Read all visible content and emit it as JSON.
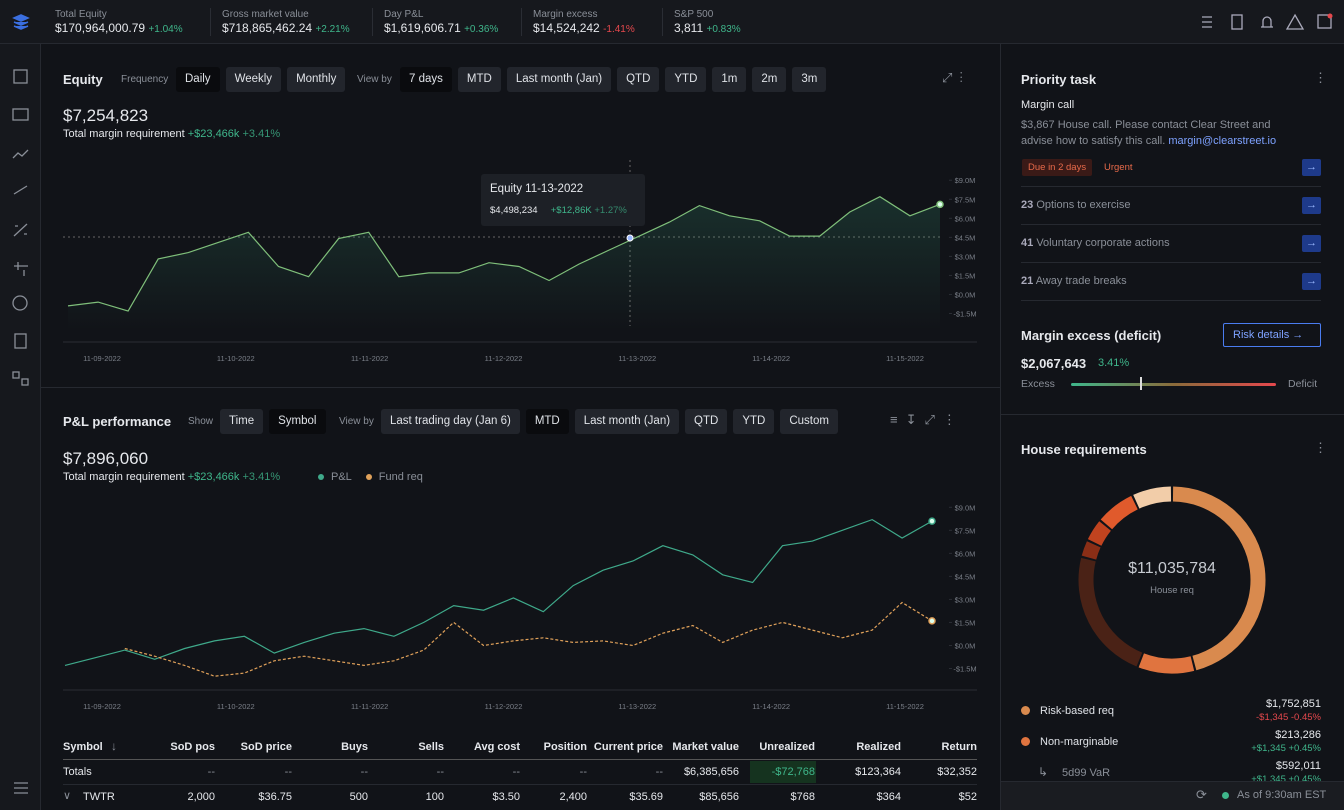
{
  "topbar": {
    "metrics": [
      {
        "label": "Total Equity",
        "value": "$170,964,000.79",
        "change": "+1.04%"
      },
      {
        "label": "Gross market value",
        "value": "$718,865,462.24",
        "change": "+2.21%"
      },
      {
        "label": "Day P&L",
        "value": "$1,619,606.71",
        "change": "+0.36%"
      },
      {
        "label": "Margin excess",
        "value": "$14,524,242",
        "change": "-1.41%"
      },
      {
        "label": "S&P 500",
        "value": "3,811",
        "change": "+0.83%"
      }
    ]
  },
  "equity": {
    "title": "Equity",
    "frequency": {
      "label": "Frequency",
      "options": [
        "Daily",
        "Weekly",
        "Monthly"
      ],
      "selected": 0
    },
    "view_by": {
      "label": "View by",
      "options": [
        "7 days",
        "MTD",
        "Last month (Jan)",
        "QTD",
        "YTD",
        "1m",
        "2m",
        "3m"
      ],
      "selected": 0
    },
    "value": "$7,254,823",
    "sub_label": "Total margin requirement",
    "sub_change": "+$23,466k",
    "sub_pct": "+3.41%",
    "tooltip": {
      "title": "Equity 11-13-2022",
      "value": "$4,498,234",
      "change": "+$12,86K",
      "pct": "+1.27%"
    },
    "chart": {
      "type": "line",
      "ylim": [
        -2.8,
        10.2
      ],
      "yticks": [
        {
          "value": 9,
          "label": "$9.0M"
        },
        {
          "value": 7.5,
          "label": "$7.5M"
        },
        {
          "value": 6,
          "label": "$6.0M"
        },
        {
          "value": 4.5,
          "label": "$4.5M"
        },
        {
          "value": 3,
          "label": "$3.0M"
        },
        {
          "value": 1.5,
          "label": "$1.5M"
        },
        {
          "value": 0,
          "label": "$0.0M"
        },
        {
          "value": -1.5,
          "label": "-$1.5M"
        }
      ],
      "x_labels": [
        "11-09-2022",
        "11-10-2022",
        "11-11-2022",
        "11-12-2022",
        "11-13-2022",
        "11-14-2022",
        "11-15-2022"
      ],
      "series": [
        {
          "color": "#7fbf7a",
          "values": [
            -0.9,
            -0.6,
            -1.3,
            2.8,
            3.3,
            4.1,
            4.9,
            2.2,
            1.4,
            4.4,
            4.9,
            1.4,
            1.7,
            1.7,
            2.5,
            2.2,
            1.1,
            2.4,
            3.5,
            4.6,
            5.7,
            7.0,
            6.2,
            5.8,
            4.6,
            4.6,
            6.5,
            7.7,
            6.2,
            7.1
          ]
        }
      ]
    }
  },
  "pnl": {
    "title": "P&L performance",
    "show": {
      "label": "Show",
      "options": [
        "Time",
        "Symbol"
      ],
      "selected": 1
    },
    "view_by": {
      "label": "View by",
      "options": [
        "Last trading day (Jan 6)",
        "MTD",
        "Last month (Jan)",
        "QTD",
        "YTD",
        "Custom"
      ],
      "selected": 1
    },
    "value": "$7,896,060",
    "sub_label": "Total margin requirement",
    "sub_change": "+$23,466k",
    "sub_pct": "+3.41%",
    "chart": {
      "type": "line",
      "ylim": [
        -2.9,
        9.8
      ],
      "yticks": [
        {
          "value": 9,
          "label": "$9.0M"
        },
        {
          "value": 7.5,
          "label": "$7.5M"
        },
        {
          "value": 6,
          "label": "$6.0M"
        },
        {
          "value": 4.5,
          "label": "$4.5M"
        },
        {
          "value": 3,
          "label": "$3.0M"
        },
        {
          "value": 1.5,
          "label": "$1.5M"
        },
        {
          "value": 0,
          "label": "$0.0M"
        },
        {
          "value": -1.5,
          "label": "-$1.5M"
        }
      ],
      "x_labels": [
        "11-09-2022",
        "11-10-2022",
        "11-11-2022",
        "11-12-2022",
        "11-13-2022",
        "11-14-2022",
        "11-15-2022"
      ],
      "series": [
        {
          "name": "P&L",
          "color": "#3fa98a",
          "values": [
            -1.3,
            -0.8,
            -0.3,
            -0.9,
            -0.2,
            0.3,
            0.6,
            -0.5,
            0.2,
            0.8,
            1.1,
            0.6,
            1.5,
            2.6,
            2.3,
            3.1,
            2.2,
            3.9,
            4.9,
            5.5,
            6.5,
            5.9,
            4.6,
            4.1,
            6.5,
            6.8,
            7.5,
            8.2,
            7.0,
            8.1
          ]
        },
        {
          "name": "Fund req",
          "color": "#e0a15a",
          "dashed": true,
          "values": [
            null,
            null,
            -0.2,
            -0.7,
            -1.3,
            -2.0,
            -1.8,
            -1.0,
            -0.7,
            -1.0,
            -1.3,
            -1.0,
            -0.3,
            1.5,
            0.0,
            0.3,
            0.5,
            0.2,
            0.3,
            0.0,
            0.8,
            1.3,
            0.2,
            1.0,
            1.5,
            1.0,
            0.5,
            1.0,
            2.8,
            1.6
          ]
        }
      ]
    },
    "table": {
      "columns": [
        "Symbol",
        "SoD pos",
        "SoD price",
        "Buys",
        "Sells",
        "Avg cost",
        "Position",
        "Current price",
        "Market value",
        "Unrealized",
        "Realized",
        "Return"
      ],
      "rows": [
        [
          "Totals",
          "--",
          "--",
          "--",
          "--",
          "--",
          "--",
          "--",
          "$6,385,656",
          "-$72,768",
          "$123,364",
          "$32,352"
        ],
        [
          "TWTR",
          "2,000",
          "$36.75",
          "500",
          "100",
          "$3.50",
          "2,400",
          "$35.69",
          "$85,656",
          "$768",
          "$364",
          "$52"
        ]
      ]
    }
  },
  "priority": {
    "title": "Priority task",
    "margin_call": {
      "title": "Margin call",
      "text1": "$3,867 House call. Please contact Clear Street and",
      "text2": "advise how to satisfy this call.",
      "email": "margin@clearstreet.io",
      "due": "Due in 2 days",
      "urgent": "Urgent"
    },
    "items": [
      {
        "count": "23",
        "text": "Options to exercise"
      },
      {
        "count": "41",
        "text": "Voluntary corporate actions"
      },
      {
        "count": "21",
        "text": "Away trade breaks"
      }
    ]
  },
  "margin_excess": {
    "title": "Margin excess (deficit)",
    "button": "Risk details",
    "value": "$2,067,643",
    "pct": "3.41%",
    "left": "Excess",
    "right": "Deficit"
  },
  "house": {
    "title": "House requirements",
    "center_value": "$11,035,784",
    "center_label": "House req",
    "segments": [
      {
        "value": 46,
        "color": "#d98a4e"
      },
      {
        "value": 10,
        "color": "#e0743f"
      },
      {
        "value": 23,
        "color": "#4a2216"
      },
      {
        "value": 3,
        "color": "#8a2e16"
      },
      {
        "value": 4,
        "color": "#c0431f"
      },
      {
        "value": 7,
        "color": "#e05a2c"
      },
      {
        "value": 7,
        "color": "#f2cda9"
      }
    ],
    "items": [
      {
        "name": "Risk-based req",
        "value": "$1,752,851",
        "change": "-$1,345",
        "pct": "-0.45%",
        "color": "#d98a4e"
      },
      {
        "name": "Non-marginable",
        "value": "$213,286",
        "change": "+$1,345",
        "pct": "+0.45%",
        "color": "#e0743f"
      },
      {
        "name": "5d99 VaR",
        "value": "$592,011",
        "change": "+$1,345",
        "pct": "+0.45%"
      }
    ]
  },
  "status": {
    "text": "As of 9:30am EST"
  }
}
